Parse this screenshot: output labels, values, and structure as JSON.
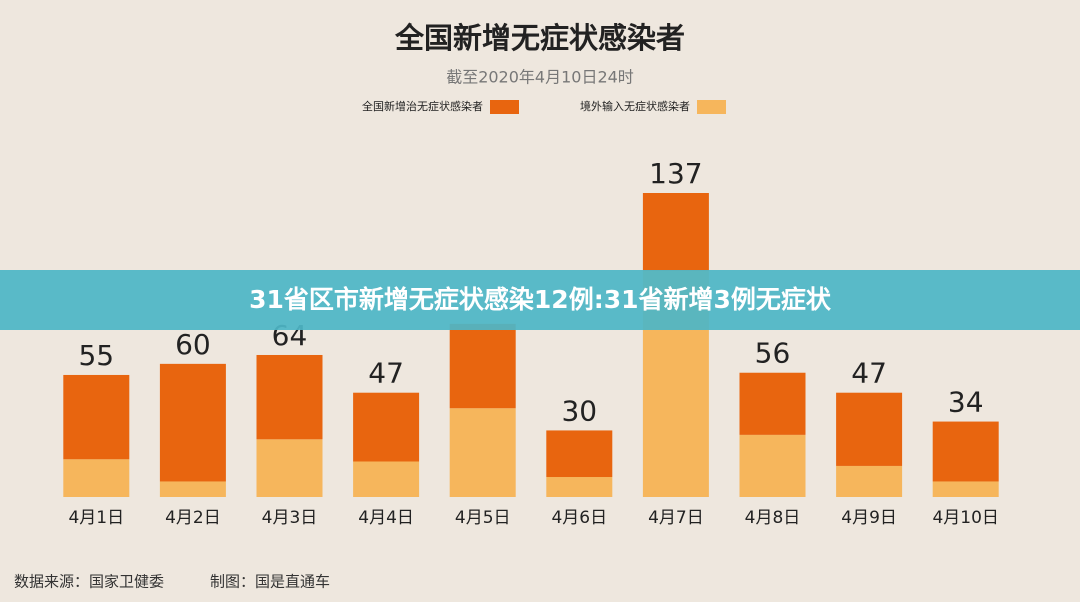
{
  "chart_data": {
    "type": "stacked_bar",
    "title": "全国新增无症状感染者",
    "subtitle": "截至2020年4月10日24时",
    "categories": [
      "4月1日",
      "4月2日",
      "4月3日",
      "4月4日",
      "4月5日",
      "4月6日",
      "4月7日",
      "4月8日",
      "4月9日",
      "4月10日"
    ],
    "series": [
      {
        "name": "境外输入无症状感染者",
        "color": "#f6b65c",
        "values": [
          17,
          7,
          26,
          16,
          40,
          9,
          102,
          28,
          14,
          7
        ]
      },
      {
        "name": "全国新增治无症状感染者",
        "color": "#e8650f",
        "values": [
          38,
          53,
          38,
          31,
          38,
          21,
          35,
          28,
          33,
          27
        ]
      }
    ],
    "legend_order": [
      1,
      0
    ],
    "total_labels": [
      55,
      60,
      64,
      47,
      null,
      30,
      137,
      56,
      47,
      34
    ],
    "source": "数据来源：国家卫健委",
    "credit": "制图：国是直通车"
  },
  "banner": "31省区市新增无症状感染12例:31省新增3例无症状"
}
